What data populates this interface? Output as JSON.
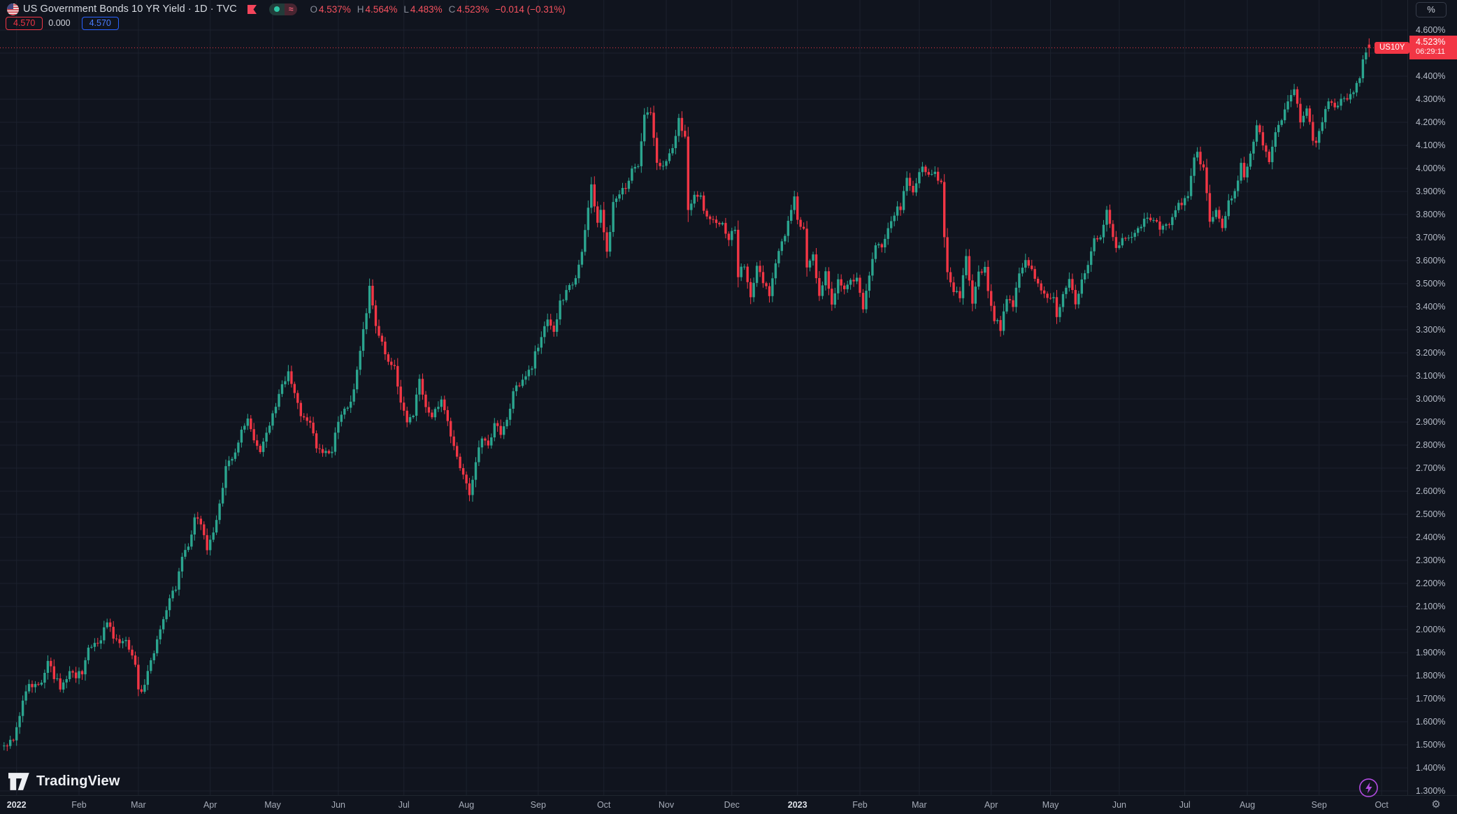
{
  "header": {
    "title_full": "US Government Bonds 10 YR Yield · 1D · TVC",
    "ohlc": [
      {
        "label": "O",
        "value": "4.537%"
      },
      {
        "label": "H",
        "value": "4.564%"
      },
      {
        "label": "L",
        "value": "4.483%"
      },
      {
        "label": "C",
        "value": "4.523%"
      }
    ],
    "change": "−0.014 (−0.31%)",
    "bid_badge": "4.570",
    "spread": "0.000",
    "ask_badge": "4.570"
  },
  "glyphs": {
    "gear": "⚙",
    "approx": "≈"
  },
  "logo": {
    "text": "TradingView"
  },
  "price_axis": {
    "unit_button": "%",
    "symbol_label": "US10Y",
    "last_price_label": "4.523%",
    "countdown": "06:29:11",
    "ticks": [
      "4.600%",
      "4.500%",
      "4.400%",
      "4.300%",
      "4.200%",
      "4.100%",
      "4.000%",
      "3.900%",
      "3.800%",
      "3.700%",
      "3.600%",
      "3.500%",
      "3.400%",
      "3.300%",
      "3.200%",
      "3.100%",
      "3.000%",
      "2.900%",
      "2.800%",
      "2.700%",
      "2.600%",
      "2.500%",
      "2.400%",
      "2.300%",
      "2.200%",
      "2.100%",
      "2.000%",
      "1.900%",
      "1.800%",
      "1.700%",
      "1.600%",
      "1.500%",
      "1.400%",
      "1.300%"
    ]
  },
  "chart_data": {
    "type": "candlestick",
    "title": "US Government Bonds 10 YR Yield",
    "symbol": "US10Y",
    "exchange": "TVC",
    "interval": "1D",
    "unit": "%",
    "grid": true,
    "y_axis": {
      "visible_min": 1.28,
      "visible_max": 4.73,
      "tick_step": 0.1,
      "label_top_value": 4.6
    },
    "current_price": 4.523,
    "current_price_line": "red-dotted",
    "countdown": "06:29:11",
    "bid": 4.57,
    "ask": 4.57,
    "spread": 0.0,
    "last_bar": {
      "open": 4.537,
      "high": 4.564,
      "low": 4.483,
      "close": 4.523,
      "change": -0.014,
      "change_pct": -0.31
    },
    "colors": {
      "up": "#2ba58f",
      "down": "#f23645",
      "price_line": "#f23645",
      "grid": "#1c212d"
    },
    "bars_total": 438,
    "months": [
      {
        "label": "2022",
        "index": 4,
        "bold": true
      },
      {
        "label": "Feb",
        "index": 24
      },
      {
        "label": "Mar",
        "index": 43
      },
      {
        "label": "Apr",
        "index": 66
      },
      {
        "label": "May",
        "index": 86
      },
      {
        "label": "Jun",
        "index": 107
      },
      {
        "label": "Jul",
        "index": 128
      },
      {
        "label": "Aug",
        "index": 148
      },
      {
        "label": "Sep",
        "index": 171
      },
      {
        "label": "Oct",
        "index": 192
      },
      {
        "label": "Nov",
        "index": 212
      },
      {
        "label": "Dec",
        "index": 233
      },
      {
        "label": "2023",
        "index": 254,
        "bold": true
      },
      {
        "label": "Feb",
        "index": 274
      },
      {
        "label": "Mar",
        "index": 293
      },
      {
        "label": "Apr",
        "index": 316
      },
      {
        "label": "May",
        "index": 335
      },
      {
        "label": "Jun",
        "index": 357
      },
      {
        "label": "Jul",
        "index": 378
      },
      {
        "label": "Aug",
        "index": 398
      },
      {
        "label": "Sep",
        "index": 421
      },
      {
        "label": "Oct",
        "index": 441
      }
    ],
    "anchors": [
      [
        0,
        1.49
      ],
      [
        3,
        1.52
      ],
      [
        4,
        1.57
      ],
      [
        6,
        1.7
      ],
      [
        8,
        1.75
      ],
      [
        12,
        1.78
      ],
      [
        14,
        1.86
      ],
      [
        16,
        1.8
      ],
      [
        18,
        1.75
      ],
      [
        21,
        1.81
      ],
      [
        23,
        1.79
      ],
      [
        25,
        1.82
      ],
      [
        27,
        1.92
      ],
      [
        31,
        1.96
      ],
      [
        33,
        2.03
      ],
      [
        35,
        1.97
      ],
      [
        37,
        1.93
      ],
      [
        39,
        1.96
      ],
      [
        41,
        1.88
      ],
      [
        42,
        1.84
      ],
      [
        43,
        1.73
      ],
      [
        45,
        1.76
      ],
      [
        47,
        1.86
      ],
      [
        50,
        1.99
      ],
      [
        53,
        2.14
      ],
      [
        55,
        2.17
      ],
      [
        57,
        2.32
      ],
      [
        59,
        2.37
      ],
      [
        61,
        2.48
      ],
      [
        63,
        2.46
      ],
      [
        65,
        2.34
      ],
      [
        67,
        2.41
      ],
      [
        69,
        2.55
      ],
      [
        71,
        2.7
      ],
      [
        74,
        2.77
      ],
      [
        76,
        2.86
      ],
      [
        78,
        2.91
      ],
      [
        80,
        2.83
      ],
      [
        82,
        2.78
      ],
      [
        84,
        2.86
      ],
      [
        85,
        2.89
      ],
      [
        87,
        2.97
      ],
      [
        89,
        3.05
      ],
      [
        91,
        3.13
      ],
      [
        93,
        3.03
      ],
      [
        95,
        2.93
      ],
      [
        98,
        2.89
      ],
      [
        100,
        2.79
      ],
      [
        103,
        2.76
      ],
      [
        105,
        2.78
      ],
      [
        106,
        2.86
      ],
      [
        108,
        2.93
      ],
      [
        110,
        2.97
      ],
      [
        112,
        3.03
      ],
      [
        114,
        3.2
      ],
      [
        116,
        3.38
      ],
      [
        117,
        3.48
      ],
      [
        119,
        3.31
      ],
      [
        121,
        3.24
      ],
      [
        123,
        3.17
      ],
      [
        125,
        3.13
      ],
      [
        127,
        2.99
      ],
      [
        129,
        2.9
      ],
      [
        131,
        2.94
      ],
      [
        133,
        3.09
      ],
      [
        135,
        2.97
      ],
      [
        137,
        2.93
      ],
      [
        140,
        3.0
      ],
      [
        142,
        2.89
      ],
      [
        144,
        2.79
      ],
      [
        147,
        2.66
      ],
      [
        149,
        2.59
      ],
      [
        151,
        2.72
      ],
      [
        153,
        2.84
      ],
      [
        155,
        2.79
      ],
      [
        157,
        2.89
      ],
      [
        159,
        2.85
      ],
      [
        161,
        2.9
      ],
      [
        163,
        3.04
      ],
      [
        165,
        3.06
      ],
      [
        167,
        3.11
      ],
      [
        169,
        3.14
      ],
      [
        170,
        3.2
      ],
      [
        172,
        3.27
      ],
      [
        174,
        3.34
      ],
      [
        176,
        3.3
      ],
      [
        178,
        3.42
      ],
      [
        180,
        3.46
      ],
      [
        182,
        3.5
      ],
      [
        184,
        3.57
      ],
      [
        186,
        3.72
      ],
      [
        188,
        3.94
      ],
      [
        190,
        3.76
      ],
      [
        191,
        3.81
      ],
      [
        193,
        3.63
      ],
      [
        195,
        3.84
      ],
      [
        197,
        3.9
      ],
      [
        199,
        3.91
      ],
      [
        201,
        4.01
      ],
      [
        203,
        4.02
      ],
      [
        205,
        4.24
      ],
      [
        207,
        4.23
      ],
      [
        209,
        4.03
      ],
      [
        211,
        4.02
      ],
      [
        213,
        4.06
      ],
      [
        215,
        4.13
      ],
      [
        216,
        4.22
      ],
      [
        218,
        4.13
      ],
      [
        219,
        3.83
      ],
      [
        221,
        3.89
      ],
      [
        223,
        3.87
      ],
      [
        225,
        3.78
      ],
      [
        227,
        3.77
      ],
      [
        230,
        3.76
      ],
      [
        232,
        3.69
      ],
      [
        234,
        3.74
      ],
      [
        235,
        3.54
      ],
      [
        237,
        3.58
      ],
      [
        239,
        3.43
      ],
      [
        241,
        3.58
      ],
      [
        243,
        3.51
      ],
      [
        245,
        3.46
      ],
      [
        247,
        3.59
      ],
      [
        249,
        3.67
      ],
      [
        251,
        3.76
      ],
      [
        253,
        3.87
      ],
      [
        254,
        3.79
      ],
      [
        256,
        3.73
      ],
      [
        257,
        3.57
      ],
      [
        259,
        3.62
      ],
      [
        261,
        3.45
      ],
      [
        263,
        3.55
      ],
      [
        265,
        3.4
      ],
      [
        267,
        3.53
      ],
      [
        269,
        3.47
      ],
      [
        271,
        3.53
      ],
      [
        273,
        3.52
      ],
      [
        275,
        3.4
      ],
      [
        277,
        3.53
      ],
      [
        279,
        3.68
      ],
      [
        281,
        3.67
      ],
      [
        283,
        3.73
      ],
      [
        285,
        3.81
      ],
      [
        287,
        3.83
      ],
      [
        289,
        3.96
      ],
      [
        291,
        3.89
      ],
      [
        292,
        3.93
      ],
      [
        294,
        4.02
      ],
      [
        296,
        3.97
      ],
      [
        298,
        3.99
      ],
      [
        300,
        3.93
      ],
      [
        301,
        3.7
      ],
      [
        302,
        3.56
      ],
      [
        304,
        3.47
      ],
      [
        306,
        3.44
      ],
      [
        308,
        3.61
      ],
      [
        310,
        3.41
      ],
      [
        312,
        3.54
      ],
      [
        314,
        3.58
      ],
      [
        315,
        3.48
      ],
      [
        317,
        3.35
      ],
      [
        319,
        3.31
      ],
      [
        321,
        3.42
      ],
      [
        323,
        3.41
      ],
      [
        325,
        3.53
      ],
      [
        327,
        3.59
      ],
      [
        329,
        3.55
      ],
      [
        331,
        3.51
      ],
      [
        333,
        3.46
      ],
      [
        334,
        3.43
      ],
      [
        336,
        3.44
      ],
      [
        337,
        3.35
      ],
      [
        339,
        3.45
      ],
      [
        341,
        3.53
      ],
      [
        343,
        3.4
      ],
      [
        345,
        3.51
      ],
      [
        347,
        3.58
      ],
      [
        349,
        3.69
      ],
      [
        351,
        3.71
      ],
      [
        353,
        3.83
      ],
      [
        355,
        3.71
      ],
      [
        356,
        3.65
      ],
      [
        358,
        3.7
      ],
      [
        360,
        3.7
      ],
      [
        362,
        3.73
      ],
      [
        364,
        3.75
      ],
      [
        366,
        3.8
      ],
      [
        368,
        3.78
      ],
      [
        370,
        3.73
      ],
      [
        372,
        3.75
      ],
      [
        374,
        3.78
      ],
      [
        376,
        3.86
      ],
      [
        377,
        3.85
      ],
      [
        379,
        3.87
      ],
      [
        381,
        4.04
      ],
      [
        382,
        4.07
      ],
      [
        384,
        3.99
      ],
      [
        386,
        3.77
      ],
      [
        388,
        3.81
      ],
      [
        390,
        3.75
      ],
      [
        392,
        3.85
      ],
      [
        394,
        3.9
      ],
      [
        396,
        4.02
      ],
      [
        397,
        3.97
      ],
      [
        399,
        4.06
      ],
      [
        401,
        4.2
      ],
      [
        403,
        4.1
      ],
      [
        405,
        4.02
      ],
      [
        407,
        4.17
      ],
      [
        409,
        4.22
      ],
      [
        411,
        4.29
      ],
      [
        413,
        4.35
      ],
      [
        415,
        4.2
      ],
      [
        417,
        4.25
      ],
      [
        419,
        4.13
      ],
      [
        420,
        4.12
      ],
      [
        422,
        4.19
      ],
      [
        424,
        4.3
      ],
      [
        426,
        4.27
      ],
      [
        428,
        4.3
      ],
      [
        430,
        4.29
      ],
      [
        432,
        4.33
      ],
      [
        434,
        4.39
      ],
      [
        435,
        4.46
      ],
      [
        436,
        4.51
      ],
      [
        437,
        4.523
      ]
    ]
  }
}
